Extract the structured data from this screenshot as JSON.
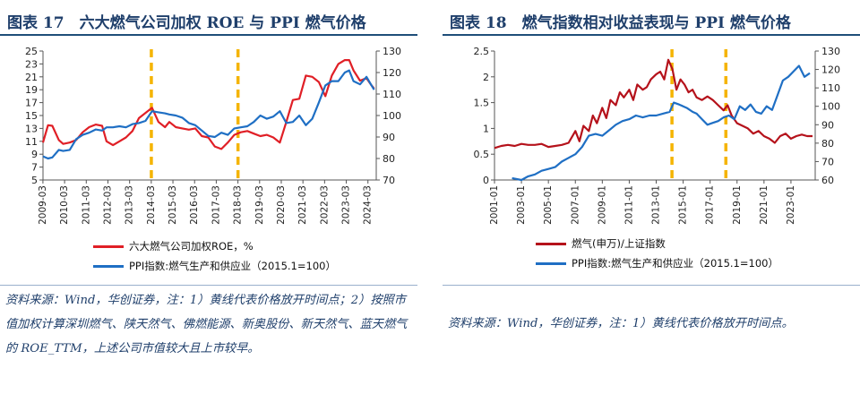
{
  "left": {
    "title": "图表 17　六大燃气公司加权 ROE 与 PPI 燃气价格",
    "source": "资料来源：Wind，华创证券，注：1）黄线代表价格放开时间点；2）按照市值加权计算深圳燃气、陕天然气、佛燃能源、新奥股份、新天然气、蓝天燃气的 ROE_TTM，上述公司市值较大且上市较早。",
    "legend": [
      {
        "label": "六大燃气公司加权ROE，%",
        "color": "#e01f26"
      },
      {
        "label": "PPI指数:燃气生产和供应业（2015.1=100）",
        "color": "#1f6fc4"
      }
    ]
  },
  "right": {
    "title": "图表 18　燃气指数相对收益表现与 PPI 燃气价格",
    "source": "资料来源：Wind，华创证券，注：1）黄线代表价格放开时间点。",
    "legend": [
      {
        "label": "燃气(申万)/上证指数",
        "color": "#b5121b"
      },
      {
        "label": "PPI指数:燃气生产和供应业（2015.1=100）",
        "color": "#1f6fc4"
      }
    ]
  },
  "chart_data": [
    {
      "type": "line",
      "title": "六大燃气公司加权 ROE 与 PPI 燃气价格",
      "x_ticks": [
        "2009-03",
        "2010-03",
        "2011-03",
        "2012-03",
        "2013-03",
        "2014-03",
        "2015-03",
        "2016-03",
        "2017-03",
        "2018-03",
        "2019-03",
        "2020-03",
        "2021-03",
        "2022-03",
        "2023-03",
        "2024-03"
      ],
      "ylim_left": [
        5,
        25
      ],
      "yticks_left": [
        5,
        7,
        9,
        11,
        13,
        15,
        17,
        19,
        21,
        23,
        25
      ],
      "ylim_right": [
        70,
        130
      ],
      "yticks_right": [
        70,
        80,
        90,
        100,
        110,
        120,
        130
      ],
      "x_range": [
        2009.17,
        2024.55
      ],
      "price_liberalization_marks": [
        2014.17,
        2018.17
      ],
      "series": [
        {
          "name": "六大燃气公司加权ROE，%",
          "axis": "left",
          "color": "#e01f26",
          "x": [
            2009.17,
            2009.4,
            2009.6,
            2009.9,
            2010.1,
            2010.4,
            2010.7,
            2011.0,
            2011.3,
            2011.6,
            2011.9,
            2012.1,
            2012.4,
            2012.7,
            2013.0,
            2013.3,
            2013.6,
            2013.9,
            2014.2,
            2014.5,
            2014.8,
            2015.0,
            2015.3,
            2015.6,
            2015.9,
            2016.2,
            2016.5,
            2016.8,
            2017.1,
            2017.4,
            2017.7,
            2018.0,
            2018.3,
            2018.6,
            2018.9,
            2019.2,
            2019.5,
            2019.8,
            2020.1,
            2020.4,
            2020.7,
            2021.0,
            2021.3,
            2021.6,
            2021.9,
            2022.2,
            2022.5,
            2022.8,
            2023.1,
            2023.3,
            2023.5,
            2023.8,
            2024.1,
            2024.3,
            2024.45
          ],
          "values": [
            10.8,
            13.5,
            13.4,
            11.2,
            10.6,
            10.8,
            11.2,
            12.4,
            13.2,
            13.6,
            13.4,
            11.0,
            10.4,
            11.0,
            11.6,
            12.6,
            14.6,
            15.4,
            16.2,
            14.0,
            13.2,
            14.0,
            13.2,
            13.0,
            12.8,
            13.0,
            11.8,
            11.6,
            10.2,
            9.8,
            10.8,
            12.0,
            12.4,
            12.6,
            12.2,
            11.8,
            12.0,
            11.6,
            10.8,
            14.0,
            17.4,
            17.6,
            21.2,
            21.0,
            20.2,
            18.0,
            21.2,
            23.0,
            23.6,
            23.6,
            22.0,
            20.4,
            20.8,
            19.8,
            19.2
          ]
        },
        {
          "name": "PPI指数:燃气生产和供应业（2015.1=100）",
          "axis": "right",
          "color": "#1f6fc4",
          "x": [
            2009.17,
            2009.4,
            2009.6,
            2009.9,
            2010.1,
            2010.4,
            2010.7,
            2011.0,
            2011.3,
            2011.6,
            2011.9,
            2012.1,
            2012.4,
            2012.7,
            2013.0,
            2013.3,
            2013.6,
            2013.9,
            2014.2,
            2014.5,
            2014.8,
            2015.0,
            2015.3,
            2015.6,
            2015.9,
            2016.2,
            2016.5,
            2016.8,
            2017.1,
            2017.4,
            2017.7,
            2018.0,
            2018.3,
            2018.6,
            2018.9,
            2019.2,
            2019.5,
            2019.8,
            2020.1,
            2020.4,
            2020.7,
            2021.0,
            2021.3,
            2021.6,
            2021.9,
            2022.2,
            2022.5,
            2022.8,
            2023.1,
            2023.3,
            2023.5,
            2023.8,
            2024.1,
            2024.3,
            2024.45
          ],
          "values": [
            81.0,
            80.0,
            80.5,
            84.0,
            83.5,
            84.0,
            89.0,
            91.0,
            92.0,
            93.5,
            93.0,
            94.5,
            94.5,
            95.0,
            94.5,
            96.0,
            96.5,
            97.5,
            102.0,
            101.5,
            101.0,
            100.5,
            100.0,
            99.0,
            96.5,
            95.5,
            93.0,
            90.5,
            90.0,
            92.0,
            91.0,
            94.0,
            94.5,
            95.0,
            97.0,
            100.0,
            98.5,
            99.5,
            102.0,
            96.5,
            97.0,
            100.0,
            95.5,
            98.5,
            106.0,
            114.0,
            116.0,
            116.0,
            120.0,
            121.0,
            116.0,
            114.5,
            118.0,
            114.5,
            112.0
          ]
        }
      ]
    },
    {
      "type": "line",
      "title": "燃气指数相对收益表现与 PPI 燃气价格",
      "x_ticks": [
        "2001-01",
        "2003-01",
        "2005-01",
        "2007-01",
        "2009-01",
        "2011-01",
        "2013-01",
        "2015-01",
        "2017-01",
        "2019-01",
        "2021-01",
        "2023-01"
      ],
      "ylim_left": [
        0,
        2.5
      ],
      "yticks_left": [
        0,
        0.5,
        1,
        1.5,
        2,
        2.5
      ],
      "ylim_right": [
        60,
        130
      ],
      "yticks_right": [
        60,
        70,
        80,
        90,
        100,
        110,
        120,
        130
      ],
      "x_range": [
        2001.0,
        2024.8
      ],
      "price_liberalization_marks": [
        2014.17,
        2018.17
      ],
      "series": [
        {
          "name": "燃气(申万)/上证指数",
          "axis": "left",
          "color": "#b5121b",
          "x": [
            2001.0,
            2001.5,
            2002.0,
            2002.5,
            2003.0,
            2003.5,
            2004.0,
            2004.5,
            2005.0,
            2005.5,
            2006.0,
            2006.5,
            2007.0,
            2007.3,
            2007.6,
            2008.0,
            2008.3,
            2008.6,
            2009.0,
            2009.3,
            2009.6,
            2010.0,
            2010.3,
            2010.6,
            2011.0,
            2011.3,
            2011.6,
            2012.0,
            2012.3,
            2012.6,
            2013.0,
            2013.3,
            2013.6,
            2013.9,
            2014.2,
            2014.5,
            2014.8,
            2015.1,
            2015.4,
            2015.7,
            2016.0,
            2016.4,
            2016.8,
            2017.2,
            2017.6,
            2018.0,
            2018.3,
            2018.6,
            2019.0,
            2019.4,
            2019.8,
            2020.2,
            2020.6,
            2021.0,
            2021.4,
            2021.8,
            2022.2,
            2022.6,
            2023.0,
            2023.4,
            2023.8,
            2024.2,
            2024.6
          ],
          "values": [
            0.62,
            0.66,
            0.68,
            0.66,
            0.7,
            0.68,
            0.68,
            0.7,
            0.64,
            0.66,
            0.68,
            0.72,
            0.95,
            0.75,
            1.05,
            0.95,
            1.25,
            1.1,
            1.4,
            1.2,
            1.55,
            1.45,
            1.7,
            1.6,
            1.75,
            1.55,
            1.85,
            1.75,
            1.8,
            1.95,
            2.05,
            2.1,
            1.95,
            2.33,
            2.15,
            1.75,
            1.95,
            1.85,
            1.7,
            1.75,
            1.6,
            1.55,
            1.62,
            1.55,
            1.45,
            1.35,
            1.45,
            1.25,
            1.1,
            1.05,
            1.0,
            0.9,
            0.95,
            0.85,
            0.8,
            0.72,
            0.85,
            0.9,
            0.8,
            0.85,
            0.88,
            0.85,
            0.85
          ]
        },
        {
          "name": "PPI指数:燃气生产和供应业（2015.1=100）",
          "axis": "right",
          "color": "#1f6fc4",
          "x": [
            2002.3,
            2003.0,
            2003.5,
            2004.0,
            2004.5,
            2005.0,
            2005.5,
            2006.0,
            2006.5,
            2007.0,
            2007.5,
            2008.0,
            2008.5,
            2009.0,
            2009.5,
            2010.0,
            2010.5,
            2011.0,
            2011.5,
            2012.0,
            2012.5,
            2013.0,
            2013.5,
            2014.0,
            2014.3,
            2014.7,
            2015.0,
            2015.3,
            2015.7,
            2016.0,
            2016.4,
            2016.8,
            2017.2,
            2017.6,
            2018.0,
            2018.4,
            2018.8,
            2019.2,
            2019.6,
            2020.0,
            2020.4,
            2020.8,
            2021.2,
            2021.6,
            2022.0,
            2022.4,
            2022.8,
            2023.2,
            2023.6,
            2024.0,
            2024.4
          ],
          "values": [
            61,
            60,
            62,
            63,
            65,
            66,
            67,
            70,
            72,
            74,
            78,
            84,
            85,
            84,
            87,
            90,
            92,
            93,
            95,
            94,
            95,
            95,
            96,
            97,
            102,
            101,
            100,
            99,
            97,
            96,
            93,
            90,
            91,
            92,
            94,
            95,
            93,
            100,
            98,
            101,
            97,
            96,
            100,
            98,
            106,
            114,
            116,
            119,
            122,
            116,
            118
          ]
        }
      ]
    }
  ]
}
